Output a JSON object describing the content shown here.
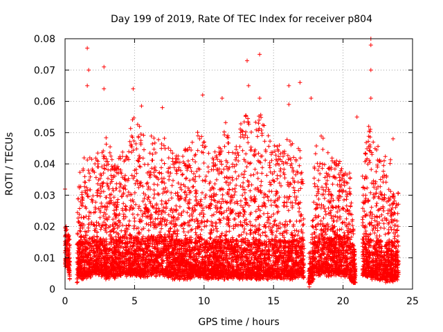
{
  "chart_data": {
    "type": "scatter",
    "title": "Day 199 of 2019, Rate Of TEC Index for receiver p804",
    "xlabel": "GPS time / hours",
    "ylabel": "ROTI / TECUs",
    "xlim": [
      0,
      25
    ],
    "ylim": [
      0,
      0.08
    ],
    "xticks": [
      "0",
      "5",
      "10",
      "15",
      "20",
      "25"
    ],
    "yticks": [
      "0",
      "0.01",
      "0.02",
      "0.03",
      "0.04",
      "0.05",
      "0.06",
      "0.07",
      "0.08"
    ],
    "grid": true,
    "marker": "+",
    "series": [
      {
        "name": "p804",
        "color": "#ff0000",
        "data_gaps_hours": [
          [
            0.35,
            0.85
          ],
          [
            17.2,
            17.5
          ],
          [
            20.9,
            21.4
          ]
        ],
        "notable_points": [
          {
            "x": 0.0,
            "y": 0.032
          },
          {
            "x": 1.6,
            "y": 0.077
          },
          {
            "x": 1.7,
            "y": 0.07
          },
          {
            "x": 1.6,
            "y": 0.065
          },
          {
            "x": 2.8,
            "y": 0.071
          },
          {
            "x": 2.8,
            "y": 0.064
          },
          {
            "x": 4.9,
            "y": 0.064
          },
          {
            "x": 5.5,
            "y": 0.0585
          },
          {
            "x": 7.0,
            "y": 0.058
          },
          {
            "x": 9.9,
            "y": 0.062
          },
          {
            "x": 11.3,
            "y": 0.061
          },
          {
            "x": 13.1,
            "y": 0.073
          },
          {
            "x": 13.2,
            "y": 0.065
          },
          {
            "x": 14.0,
            "y": 0.075
          },
          {
            "x": 14.0,
            "y": 0.061
          },
          {
            "x": 16.1,
            "y": 0.065
          },
          {
            "x": 16.1,
            "y": 0.059
          },
          {
            "x": 16.9,
            "y": 0.066
          },
          {
            "x": 17.7,
            "y": 0.061
          },
          {
            "x": 21.0,
            "y": 0.055
          },
          {
            "x": 22.0,
            "y": 0.08
          },
          {
            "x": 22.0,
            "y": 0.078
          },
          {
            "x": 22.0,
            "y": 0.07
          },
          {
            "x": 22.0,
            "y": 0.061
          },
          {
            "x": 23.6,
            "y": 0.048
          }
        ],
        "envelope_hours": [
          0,
          0.25,
          0.5,
          1,
          1.5,
          2,
          2.5,
          3,
          3.5,
          4,
          4.5,
          5,
          5.5,
          6,
          6.5,
          7,
          7.5,
          8,
          8.5,
          9,
          9.5,
          10,
          10.5,
          11,
          11.5,
          12,
          12.5,
          13,
          13.5,
          14,
          14.5,
          15,
          15.5,
          16,
          16.5,
          17,
          17.5,
          18,
          18.5,
          19,
          19.5,
          20,
          20.5,
          21,
          21.5,
          22,
          22.5,
          23,
          23.5,
          24
        ],
        "envelope_upper": [
          0.023,
          0.018,
          0.0,
          0.035,
          0.046,
          0.044,
          0.046,
          0.049,
          0.04,
          0.044,
          0.047,
          0.058,
          0.05,
          0.047,
          0.05,
          0.048,
          0.046,
          0.043,
          0.044,
          0.046,
          0.05,
          0.05,
          0.044,
          0.045,
          0.055,
          0.043,
          0.05,
          0.058,
          0.052,
          0.058,
          0.05,
          0.048,
          0.045,
          0.05,
          0.046,
          0.046,
          0.0,
          0.045,
          0.052,
          0.044,
          0.042,
          0.04,
          0.038,
          0.0,
          0.045,
          0.055,
          0.046,
          0.043,
          0.04,
          0.03
        ],
        "envelope_lower": [
          0.008,
          0.006,
          0.0,
          0.004,
          0.004,
          0.005,
          0.005,
          0.004,
          0.004,
          0.005,
          0.005,
          0.005,
          0.004,
          0.005,
          0.005,
          0.005,
          0.004,
          0.004,
          0.004,
          0.004,
          0.005,
          0.004,
          0.004,
          0.004,
          0.004,
          0.004,
          0.004,
          0.004,
          0.004,
          0.004,
          0.004,
          0.004,
          0.004,
          0.004,
          0.004,
          0.005,
          0.0,
          0.005,
          0.005,
          0.005,
          0.005,
          0.005,
          0.004,
          0.0,
          0.005,
          0.004,
          0.004,
          0.003,
          0.003,
          0.004
        ]
      }
    ]
  }
}
